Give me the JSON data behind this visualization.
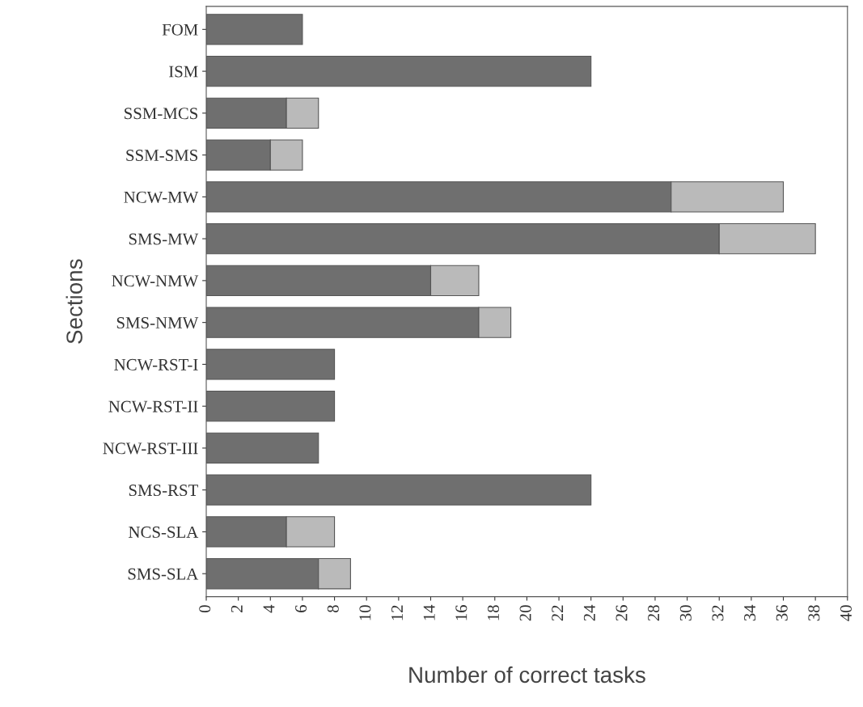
{
  "chart_data": {
    "type": "bar",
    "orientation": "horizontal",
    "stacked": true,
    "xlabel": "Number of correct tasks",
    "ylabel": "Sections",
    "categories": [
      "FOM",
      "ISM",
      "SSM-MCS",
      "SSM-SMS",
      "NCW-MW",
      "SMS-MW",
      "NCW-NMW",
      "SMS-NMW",
      "NCW-RST-I",
      "NCW-RST-II",
      "NCW-RST-III",
      "SMS-RST",
      "NCS-SLA",
      "SMS-SLA"
    ],
    "series": [
      {
        "color": "#6f6f6f",
        "values": [
          6,
          24,
          5,
          4,
          29,
          32,
          14,
          17,
          8,
          8,
          7,
          24,
          5,
          7
        ]
      },
      {
        "color": "#bababa",
        "values": [
          null,
          null,
          2,
          2,
          7,
          6,
          3,
          2,
          null,
          null,
          null,
          null,
          3,
          2
        ]
      }
    ],
    "xlim": [
      0,
      40
    ],
    "xticks": [
      0,
      2,
      4,
      6,
      8,
      10,
      12,
      14,
      16,
      18,
      20,
      22,
      24,
      26,
      28,
      30,
      32,
      34,
      36,
      38,
      40
    ],
    "grid": false
  }
}
